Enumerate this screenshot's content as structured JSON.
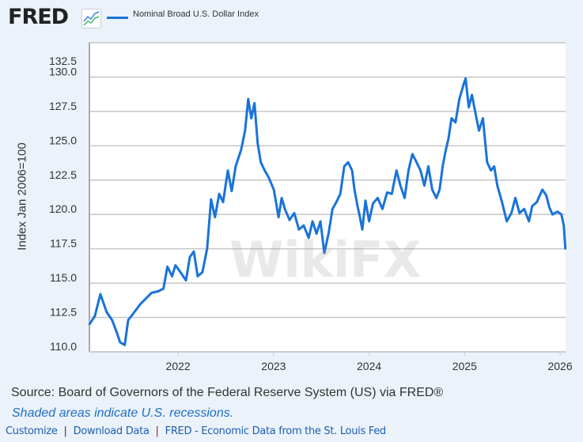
{
  "header": {
    "logo": "FRED",
    "legend": "Nominal Broad U.S. Dollar Index"
  },
  "watermark": "WikiFX",
  "chart_data": {
    "type": "line",
    "title": "",
    "xlabel": "",
    "ylabel": "Index Jan 2006=100",
    "ylim": [
      110,
      132.5
    ],
    "xlim": [
      "2021-01-27",
      "2026-01-22"
    ],
    "yticks": [
      "110.0",
      "112.5",
      "115.0",
      "117.5",
      "120.0",
      "122.5",
      "125.0",
      "127.5",
      "130.0",
      "132.5"
    ],
    "xticks": [
      "2022",
      "2023",
      "2024",
      "2025",
      "2026"
    ],
    "grid": true,
    "legend_position": "top-left",
    "series": [
      {
        "name": "Nominal Broad U.S. Dollar Index",
        "color": "#1a73d9",
        "points": [
          [
            "2021-01-27",
            112.0
          ],
          [
            "2021-02-17",
            112.6
          ],
          [
            "2021-03-10",
            114.2
          ],
          [
            "2021-04-03",
            112.9
          ],
          [
            "2021-04-24",
            112.3
          ],
          [
            "2021-05-12",
            111.4
          ],
          [
            "2021-05-24",
            110.7
          ],
          [
            "2021-06-11",
            110.5
          ],
          [
            "2021-06-24",
            112.3
          ],
          [
            "2021-07-18",
            112.9
          ],
          [
            "2021-08-11",
            113.5
          ],
          [
            "2021-09-01",
            113.9
          ],
          [
            "2021-09-22",
            114.3
          ],
          [
            "2021-10-16",
            114.4
          ],
          [
            "2021-11-06",
            114.6
          ],
          [
            "2021-11-21",
            116.2
          ],
          [
            "2021-12-09",
            115.5
          ],
          [
            "2021-12-22",
            116.3
          ],
          [
            "2022-01-10",
            115.8
          ],
          [
            "2022-01-31",
            115.2
          ],
          [
            "2022-02-15",
            116.9
          ],
          [
            "2022-03-02",
            117.3
          ],
          [
            "2022-03-17",
            115.5
          ],
          [
            "2022-04-04",
            115.8
          ],
          [
            "2022-04-22",
            117.5
          ],
          [
            "2022-05-07",
            121.1
          ],
          [
            "2022-05-22",
            119.8
          ],
          [
            "2022-06-07",
            121.5
          ],
          [
            "2022-06-22",
            120.9
          ],
          [
            "2022-07-10",
            123.2
          ],
          [
            "2022-07-25",
            121.7
          ],
          [
            "2022-08-09",
            123.5
          ],
          [
            "2022-08-30",
            124.7
          ],
          [
            "2022-09-14",
            126.1
          ],
          [
            "2022-09-26",
            128.4
          ],
          [
            "2022-10-08",
            127.0
          ],
          [
            "2022-10-20",
            128.1
          ],
          [
            "2022-11-01",
            125.2
          ],
          [
            "2022-11-13",
            123.8
          ],
          [
            "2022-11-28",
            123.2
          ],
          [
            "2022-12-13",
            122.7
          ],
          [
            "2023-01-02",
            121.8
          ],
          [
            "2023-01-20",
            119.8
          ],
          [
            "2023-02-01",
            121.2
          ],
          [
            "2023-02-13",
            120.4
          ],
          [
            "2023-03-03",
            119.6
          ],
          [
            "2023-03-21",
            120.1
          ],
          [
            "2023-04-08",
            118.9
          ],
          [
            "2023-04-26",
            119.2
          ],
          [
            "2023-05-15",
            118.3
          ],
          [
            "2023-05-30",
            119.5
          ],
          [
            "2023-06-14",
            118.6
          ],
          [
            "2023-06-29",
            119.5
          ],
          [
            "2023-07-14",
            117.2
          ],
          [
            "2023-07-30",
            118.6
          ],
          [
            "2023-08-14",
            120.4
          ],
          [
            "2023-08-29",
            120.9
          ],
          [
            "2023-09-13",
            121.5
          ],
          [
            "2023-09-28",
            123.5
          ],
          [
            "2023-10-13",
            123.8
          ],
          [
            "2023-10-28",
            123.2
          ],
          [
            "2023-11-06",
            121.8
          ],
          [
            "2023-11-18",
            120.6
          ],
          [
            "2023-11-27",
            119.8
          ],
          [
            "2023-12-06",
            118.9
          ],
          [
            "2023-12-18",
            121.0
          ],
          [
            "2024-01-01",
            119.5
          ],
          [
            "2024-01-16",
            120.8
          ],
          [
            "2024-02-03",
            121.2
          ],
          [
            "2024-02-21",
            120.4
          ],
          [
            "2024-03-10",
            121.6
          ],
          [
            "2024-03-28",
            121.5
          ],
          [
            "2024-04-15",
            123.2
          ],
          [
            "2024-04-30",
            122.1
          ],
          [
            "2024-05-16",
            121.2
          ],
          [
            "2024-05-31",
            123.2
          ],
          [
            "2024-06-15",
            124.4
          ],
          [
            "2024-07-01",
            123.8
          ],
          [
            "2024-07-16",
            123.2
          ],
          [
            "2024-07-31",
            122.1
          ],
          [
            "2024-08-15",
            123.5
          ],
          [
            "2024-08-30",
            121.8
          ],
          [
            "2024-09-15",
            121.2
          ],
          [
            "2024-09-27",
            121.8
          ],
          [
            "2024-10-09",
            123.5
          ],
          [
            "2024-10-21",
            124.7
          ],
          [
            "2024-10-31",
            125.5
          ],
          [
            "2024-11-12",
            127.0
          ],
          [
            "2024-11-27",
            126.7
          ],
          [
            "2024-12-12",
            128.4
          ],
          [
            "2024-12-27",
            129.4
          ],
          [
            "2025-01-05",
            129.9
          ],
          [
            "2025-01-17",
            127.8
          ],
          [
            "2025-01-29",
            128.7
          ],
          [
            "2025-02-10",
            127.5
          ],
          [
            "2025-02-25",
            126.1
          ],
          [
            "2025-03-12",
            127.0
          ],
          [
            "2025-03-28",
            123.8
          ],
          [
            "2025-04-12",
            123.2
          ],
          [
            "2025-04-24",
            123.5
          ],
          [
            "2025-05-06",
            122.1
          ],
          [
            "2025-05-24",
            120.9
          ],
          [
            "2025-06-11",
            119.5
          ],
          [
            "2025-06-29",
            120.1
          ],
          [
            "2025-07-14",
            121.2
          ],
          [
            "2025-07-30",
            120.1
          ],
          [
            "2025-08-17",
            120.4
          ],
          [
            "2025-09-04",
            119.5
          ],
          [
            "2025-09-16",
            120.6
          ],
          [
            "2025-10-04",
            120.9
          ],
          [
            "2025-10-25",
            121.8
          ],
          [
            "2025-11-09",
            121.4
          ],
          [
            "2025-11-21",
            120.5
          ],
          [
            "2025-12-03",
            120.0
          ],
          [
            "2025-12-22",
            120.2
          ],
          [
            "2026-01-06",
            120.0
          ],
          [
            "2026-01-15",
            119.2
          ],
          [
            "2026-01-21",
            117.5
          ]
        ]
      }
    ]
  },
  "footer": {
    "source": "Source: Board of Governors of the Federal Reserve System (US) via FRED®",
    "recessions": "Shaded areas indicate U.S. recessions.",
    "links": {
      "customize": "Customize",
      "download": "Download Data",
      "fred": "FRED - Economic Data from the St. Louis Fed"
    },
    "separator": "|"
  }
}
